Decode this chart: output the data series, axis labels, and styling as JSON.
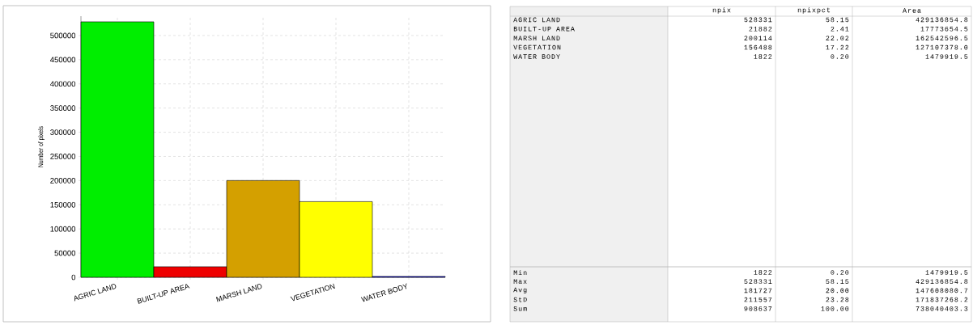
{
  "chart_data": [
    {
      "type": "bar",
      "ylabel": "Number of pixels",
      "categories": [
        "AGRIC LAND",
        "BUILT-UP AREA",
        "MARSH LAND",
        "VEGETATION",
        "WATER BODY"
      ],
      "values": [
        528331,
        21882,
        200114,
        156488,
        1822
      ],
      "colors": [
        "#00ee00",
        "#ee0000",
        "#d4a000",
        "#ffff00",
        "#0000ff"
      ],
      "ylim": [
        0,
        540000
      ],
      "yticks": [
        0,
        50000,
        100000,
        150000,
        200000,
        250000,
        300000,
        350000,
        400000,
        450000,
        500000
      ],
      "grid": true
    },
    {
      "type": "other",
      "categories": [
        "npix",
        "npixpct",
        "Area"
      ],
      "y_categories": [
        "AGRIC LAND",
        "BUILT-UP AREA",
        "MARSH LAND",
        "VEGETATION",
        "WATER BODY"
      ],
      "cell_labels": [
        [
          "528331",
          "58.15",
          "429136854.8"
        ],
        [
          "21882",
          "2.41",
          "17773654.5"
        ],
        [
          "200114",
          "22.02",
          "162542596.5"
        ],
        [
          "156488",
          "17.22",
          "127107378.0"
        ],
        [
          "1822",
          "0.20",
          "1479919.5"
        ]
      ]
    },
    {
      "type": "other",
      "y_categories": [
        "Min",
        "Max",
        "Avg",
        "StD",
        "Sum"
      ],
      "cell_labels": [
        [
          "1822",
          "0.20",
          "1479919.5"
        ],
        [
          "528331",
          "58.15",
          "429136854.8"
        ],
        [
          "181727",
          "20.00",
          "147608080.7"
        ],
        [
          "211557",
          "23.28",
          "171837268.2"
        ],
        [
          "908637",
          "100.00",
          "738040403.3"
        ]
      ]
    }
  ]
}
